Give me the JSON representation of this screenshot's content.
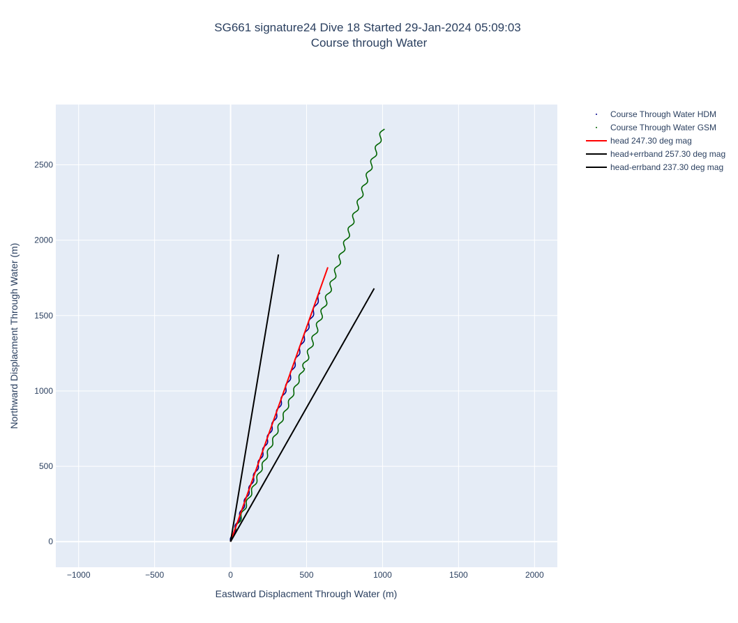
{
  "chart_data": {
    "type": "line",
    "title_lines": [
      "SG661 signature24 Dive 18 Started 29-Jan-2024 05:09:03",
      "Course through Water"
    ],
    "xlabel": "Eastward Displacment Through Water (m)",
    "ylabel": "Northward Displacment Through Water (m)",
    "xlim": [
      -1150,
      2150
    ],
    "ylim": [
      -170,
      2900
    ],
    "xticks": [
      -1000,
      -500,
      0,
      500,
      1000,
      1500,
      2000
    ],
    "xtick_labels": [
      "−1000",
      "−500",
      "0",
      "500",
      "1000",
      "1500",
      "2000"
    ],
    "yticks": [
      0,
      500,
      1000,
      1500,
      2000,
      2500
    ],
    "ytick_labels": [
      "0",
      "500",
      "1000",
      "1500",
      "2000",
      "2500"
    ],
    "grid": true,
    "legend_position": "top-right-outside",
    "colors": {
      "hdm": "#00008b",
      "gsm": "#006400",
      "head": "#ff0000",
      "errband": "#000000",
      "plot_bg": "#e5ecf6",
      "grid": "#ffffff"
    },
    "series": [
      {
        "name": "Course Through Water HDM",
        "style": "markers",
        "path": {
          "x0": 0,
          "y0": 0,
          "x1": 590,
          "y1": 1650,
          "amp": 8,
          "period": 90
        },
        "color": "#00008b"
      },
      {
        "name": "Course Through Water GSM",
        "style": "markers",
        "path_segments": [
          {
            "x0": 0,
            "y0": 0,
            "x1": 480,
            "y1": 1150,
            "amp": 8,
            "period": 90
          },
          {
            "x0": 480,
            "y0": 1150,
            "x1": 1005,
            "y1": 2740,
            "amp": 12,
            "period": 95
          }
        ],
        "color": "#006400"
      },
      {
        "name": "head 247.30 deg mag",
        "style": "line",
        "x": [
          0,
          640
        ],
        "y": [
          0,
          1820
        ],
        "color": "#ff0000"
      },
      {
        "name": "head+errband 257.30 deg mag",
        "style": "line",
        "x": [
          0,
          315
        ],
        "y": [
          0,
          1905
        ],
        "color": "#000000"
      },
      {
        "name": "head-errband 237.30 deg mag",
        "style": "line",
        "x": [
          0,
          945
        ],
        "y": [
          0,
          1680
        ],
        "color": "#000000"
      }
    ]
  }
}
